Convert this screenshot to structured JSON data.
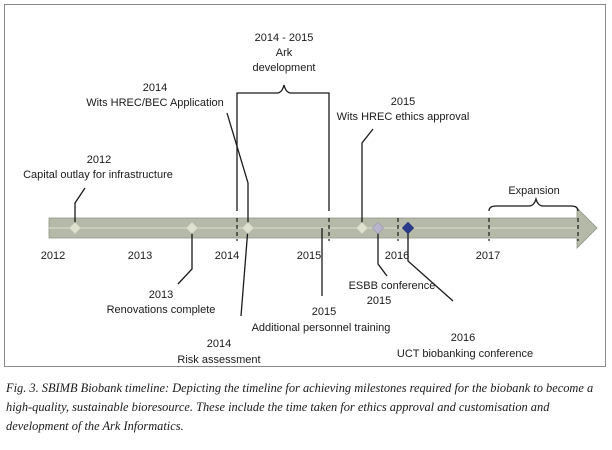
{
  "timeline": {
    "years": [
      "2012",
      "2013",
      "2014",
      "2015",
      "2016",
      "2017"
    ],
    "milestones": [
      {
        "year": "2012",
        "text": "Capital outlay for infrastructure"
      },
      {
        "year": "2013",
        "text": "Renovations complete"
      },
      {
        "year": "2014",
        "text": "Wits HREC/BEC Application"
      },
      {
        "year": "2014",
        "text": "Risk assessment"
      },
      {
        "year": "2015",
        "text": "Wits HREC ethics approval"
      },
      {
        "year": "2015",
        "text": "Additional personnel training"
      },
      {
        "year": "2015",
        "text": "ESBB conference"
      },
      {
        "year": "2016",
        "text": "UCT biobanking conference"
      }
    ],
    "periods": [
      {
        "year": "2014 - 2015",
        "text": [
          "Ark",
          "development"
        ]
      },
      {
        "text": [
          "Expansion"
        ]
      }
    ],
    "colors": {
      "arrow": "#b4b9a8",
      "diamond": "#dfe2cf",
      "diamond_dark": "#2a3a8c",
      "diamond_mid": "#b8b4cc",
      "line": "#1a1a1a"
    }
  },
  "caption": "Fig. 3. SBIMB Biobank timeline: Depicting the timeline for achieving milestones required for the biobank to become a high-quality, sustainable bioresource. These include the time taken for ethics approval and customisation and development of the Ark Informatics."
}
